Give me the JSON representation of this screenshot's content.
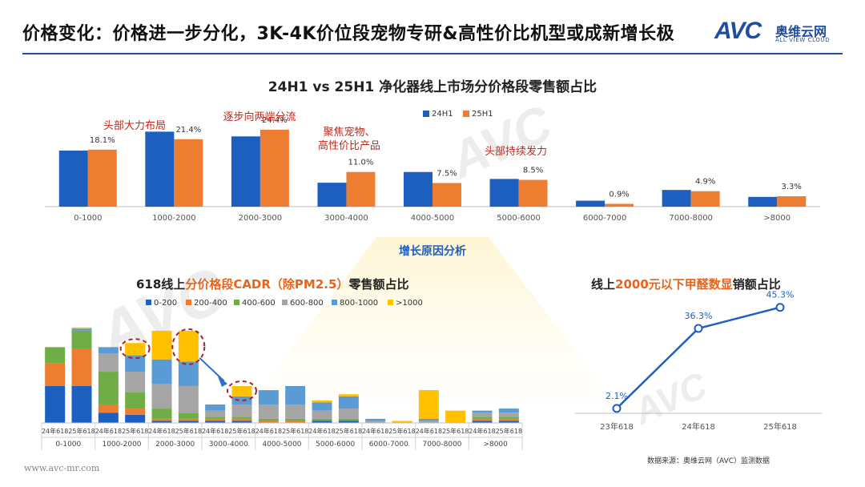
{
  "header": {
    "title": "价格变化：价格进一步分化，3K-4K价位段宠物专研&高性价比机型或成新增长极",
    "logo_mark": "AVC",
    "logo_cn": "奥维云网",
    "logo_en": "ALL VIEW CLOUD"
  },
  "colors": {
    "blue": "#1d5fbf",
    "orange": "#ed7d31",
    "green": "#70ad47",
    "gray": "#a5a5a5",
    "light_blue": "#5b9bd5",
    "yellow": "#ffc000",
    "annotation_red": "#c0281c",
    "circle_red": "#b02020"
  },
  "chart_data": [
    {
      "type": "bar",
      "title": "24H1 vs 25H1 净化器线上市场分价格段零售额占比",
      "categories": [
        "0-1000",
        "1000-2000",
        "2000-3000",
        "3000-4000",
        "4000-5000",
        "5000-6000",
        "6000-7000",
        "7000-8000",
        ">8000"
      ],
      "series": [
        {
          "name": "24H1",
          "values": [
            17.8,
            23.8,
            22.3,
            7.6,
            11.0,
            8.8,
            1.9,
            5.3,
            3.1
          ]
        },
        {
          "name": "25H1",
          "values": [
            18.1,
            21.4,
            24.4,
            11.0,
            7.5,
            8.5,
            0.9,
            4.9,
            3.3
          ]
        }
      ],
      "data_labels": [
        "18.1%",
        "21.4%",
        "24.4%",
        "11.0%",
        "7.5%",
        "8.5%",
        "0.9%",
        "4.9%",
        "3.3%"
      ],
      "annotations": [
        "头部大力布局",
        "逐步向两端分流",
        "聚焦宠物、",
        "高性价比产品",
        "头部持续发力"
      ],
      "ylim": [
        0,
        30
      ],
      "legend": "top"
    },
    {
      "type": "bar",
      "stacked": true,
      "title_prefix": "618线上",
      "title_highlight": "分价格段CADR（除PM2.5）",
      "title_suffix": "零售额占比",
      "segments": [
        "0-200",
        "200-400",
        "400-600",
        "600-800",
        "800-1000",
        ">1000"
      ],
      "groups": [
        "0-1000",
        "1000-2000",
        "2000-3000",
        "3000-4000",
        "4000-5000",
        "5000-6000",
        "6000-7000",
        "7000-8000",
        ">8000"
      ],
      "bar_labels": [
        "24年618",
        "25年618"
      ],
      "bars": [
        [
          9.0,
          5.5,
          4.0,
          0.0,
          0.0,
          0.0
        ],
        [
          9.0,
          9.0,
          4.5,
          0.0,
          0.5,
          0.3
        ],
        [
          2.5,
          2.0,
          8.0,
          4.5,
          1.5,
          0.0
        ],
        [
          2.0,
          1.5,
          4.0,
          5.0,
          4.0,
          3.0
        ],
        [
          0.5,
          0.5,
          2.5,
          6.0,
          6.0,
          7.0
        ],
        [
          0.5,
          0.5,
          1.5,
          6.5,
          6.0,
          7.5
        ],
        [
          0.5,
          0.5,
          0.5,
          1.5,
          1.5,
          0.0
        ],
        [
          0.5,
          0.5,
          0.5,
          3.0,
          2.0,
          2.5
        ],
        [
          0.0,
          0.5,
          0.5,
          3.5,
          3.5,
          0.0
        ],
        [
          0.0,
          0.5,
          0.5,
          3.5,
          4.5,
          0.0
        ],
        [
          0.5,
          0.0,
          0.5,
          2.0,
          2.0,
          0.5
        ],
        [
          0.5,
          0.0,
          0.5,
          2.5,
          3.0,
          0.5
        ],
        [
          0.0,
          0.0,
          0.0,
          0.5,
          0.5,
          0.0
        ],
        [
          0.0,
          0.0,
          0.0,
          0.0,
          0.0,
          0.5
        ],
        [
          0.0,
          0.0,
          0.0,
          0.5,
          0.5,
          7.0
        ],
        [
          0.0,
          0.0,
          0.0,
          0.0,
          0.0,
          3.0
        ],
        [
          0.5,
          0.5,
          0.5,
          1.0,
          0.5,
          0.0
        ],
        [
          0.5,
          0.5,
          0.5,
          1.0,
          1.0,
          0.0
        ]
      ],
      "ylim": [
        0,
        26
      ],
      "legend": "top"
    },
    {
      "type": "line",
      "title_prefix": "线上",
      "title_highlight": "2000元以下甲醛数显",
      "title_suffix": "销额占比",
      "categories": [
        "23年618",
        "24年618",
        "25年618"
      ],
      "values": [
        2.1,
        36.3,
        45.3
      ],
      "data_labels": [
        "2.1%",
        "36.3%",
        "45.3%"
      ],
      "ylim": [
        0,
        50
      ]
    }
  ],
  "reason_label": "增长原因分析",
  "source_text": "数据来源：奥维云网（AVC）监测数据",
  "website": "www.avc-mr.com"
}
